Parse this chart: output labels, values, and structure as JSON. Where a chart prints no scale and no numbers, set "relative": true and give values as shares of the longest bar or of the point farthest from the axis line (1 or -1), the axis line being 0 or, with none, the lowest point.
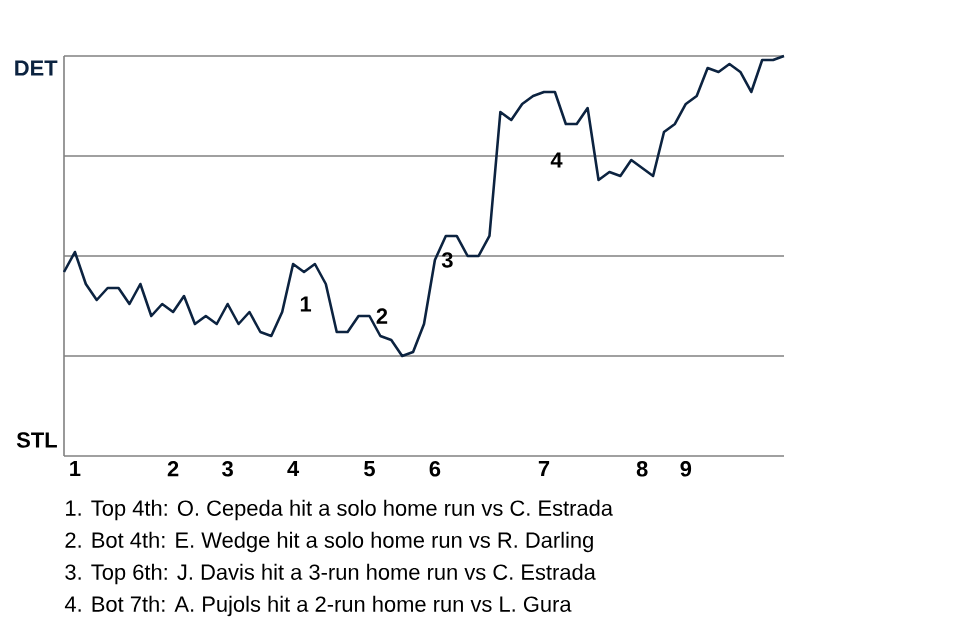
{
  "chart_data": {
    "type": "line",
    "relative": true,
    "categories": [
      null,
      "1",
      null,
      null,
      null,
      null,
      null,
      null,
      null,
      null,
      "2",
      null,
      null,
      null,
      null,
      "3",
      null,
      null,
      null,
      null,
      null,
      "4",
      null,
      null,
      null,
      null,
      null,
      null,
      "5",
      null,
      null,
      null,
      null,
      null,
      "6",
      null,
      null,
      null,
      null,
      null,
      null,
      null,
      null,
      null,
      "7",
      null,
      null,
      null,
      null,
      null,
      null,
      null,
      null,
      "8",
      null,
      null,
      null,
      "9",
      null,
      null,
      null,
      null,
      null,
      null,
      null,
      null,
      null
    ],
    "series": [
      {
        "color": "#0c2340",
        "values": [
          0.46,
          0.51,
          0.43,
          0.39,
          0.42,
          0.42,
          0.38,
          0.43,
          0.35,
          0.38,
          0.36,
          0.4,
          0.33,
          0.35,
          0.33,
          0.38,
          0.33,
          0.36,
          0.31,
          0.3,
          0.36,
          0.48,
          0.46,
          0.48,
          0.43,
          0.31,
          0.31,
          0.35,
          0.35,
          0.3,
          0.29,
          0.25,
          0.26,
          0.33,
          0.49,
          0.55,
          0.55,
          0.5,
          0.5,
          0.55,
          0.86,
          0.84,
          0.88,
          0.9,
          0.91,
          0.91,
          0.83,
          0.83,
          0.87,
          0.69,
          0.71,
          0.7,
          0.74,
          0.72,
          0.7,
          0.81,
          0.83,
          0.88,
          0.9,
          0.97,
          0.96,
          0.98,
          0.96,
          0.91,
          0.99,
          0.99,
          1
        ]
      }
    ],
    "ref_lines": [
      {
        "axis": "y",
        "value": 0.25,
        "color": "#808080"
      },
      {
        "axis": "y",
        "value": 0.5,
        "color": "#808080"
      },
      {
        "axis": "y",
        "value": 0.75,
        "color": "#808080"
      },
      {
        "axis": "y",
        "value": 1,
        "color": "#808080"
      }
    ],
    "annotations": [
      "DET",
      "STL",
      {
        "text": "1",
        "x": "4",
        "y": 0.38
      },
      {
        "text": "2",
        "x": "5",
        "y": 0.35
      },
      {
        "text": "3",
        "x": "6",
        "y": 0.49
      },
      {
        "text": "4",
        "x": "7",
        "y": 0.74
      },
      "1. Top 4th: O. Cepeda hit a solo home run vs C. Estrada",
      "2. Bot 4th: E. Wedge hit a solo home run vs R. Darling",
      "3. Top 6th: J. Davis hit a 3-run home run vs C. Estrada",
      "4. Bot 7th: A. Pujols hit a 2-run home run vs L. Gura"
    ]
  }
}
